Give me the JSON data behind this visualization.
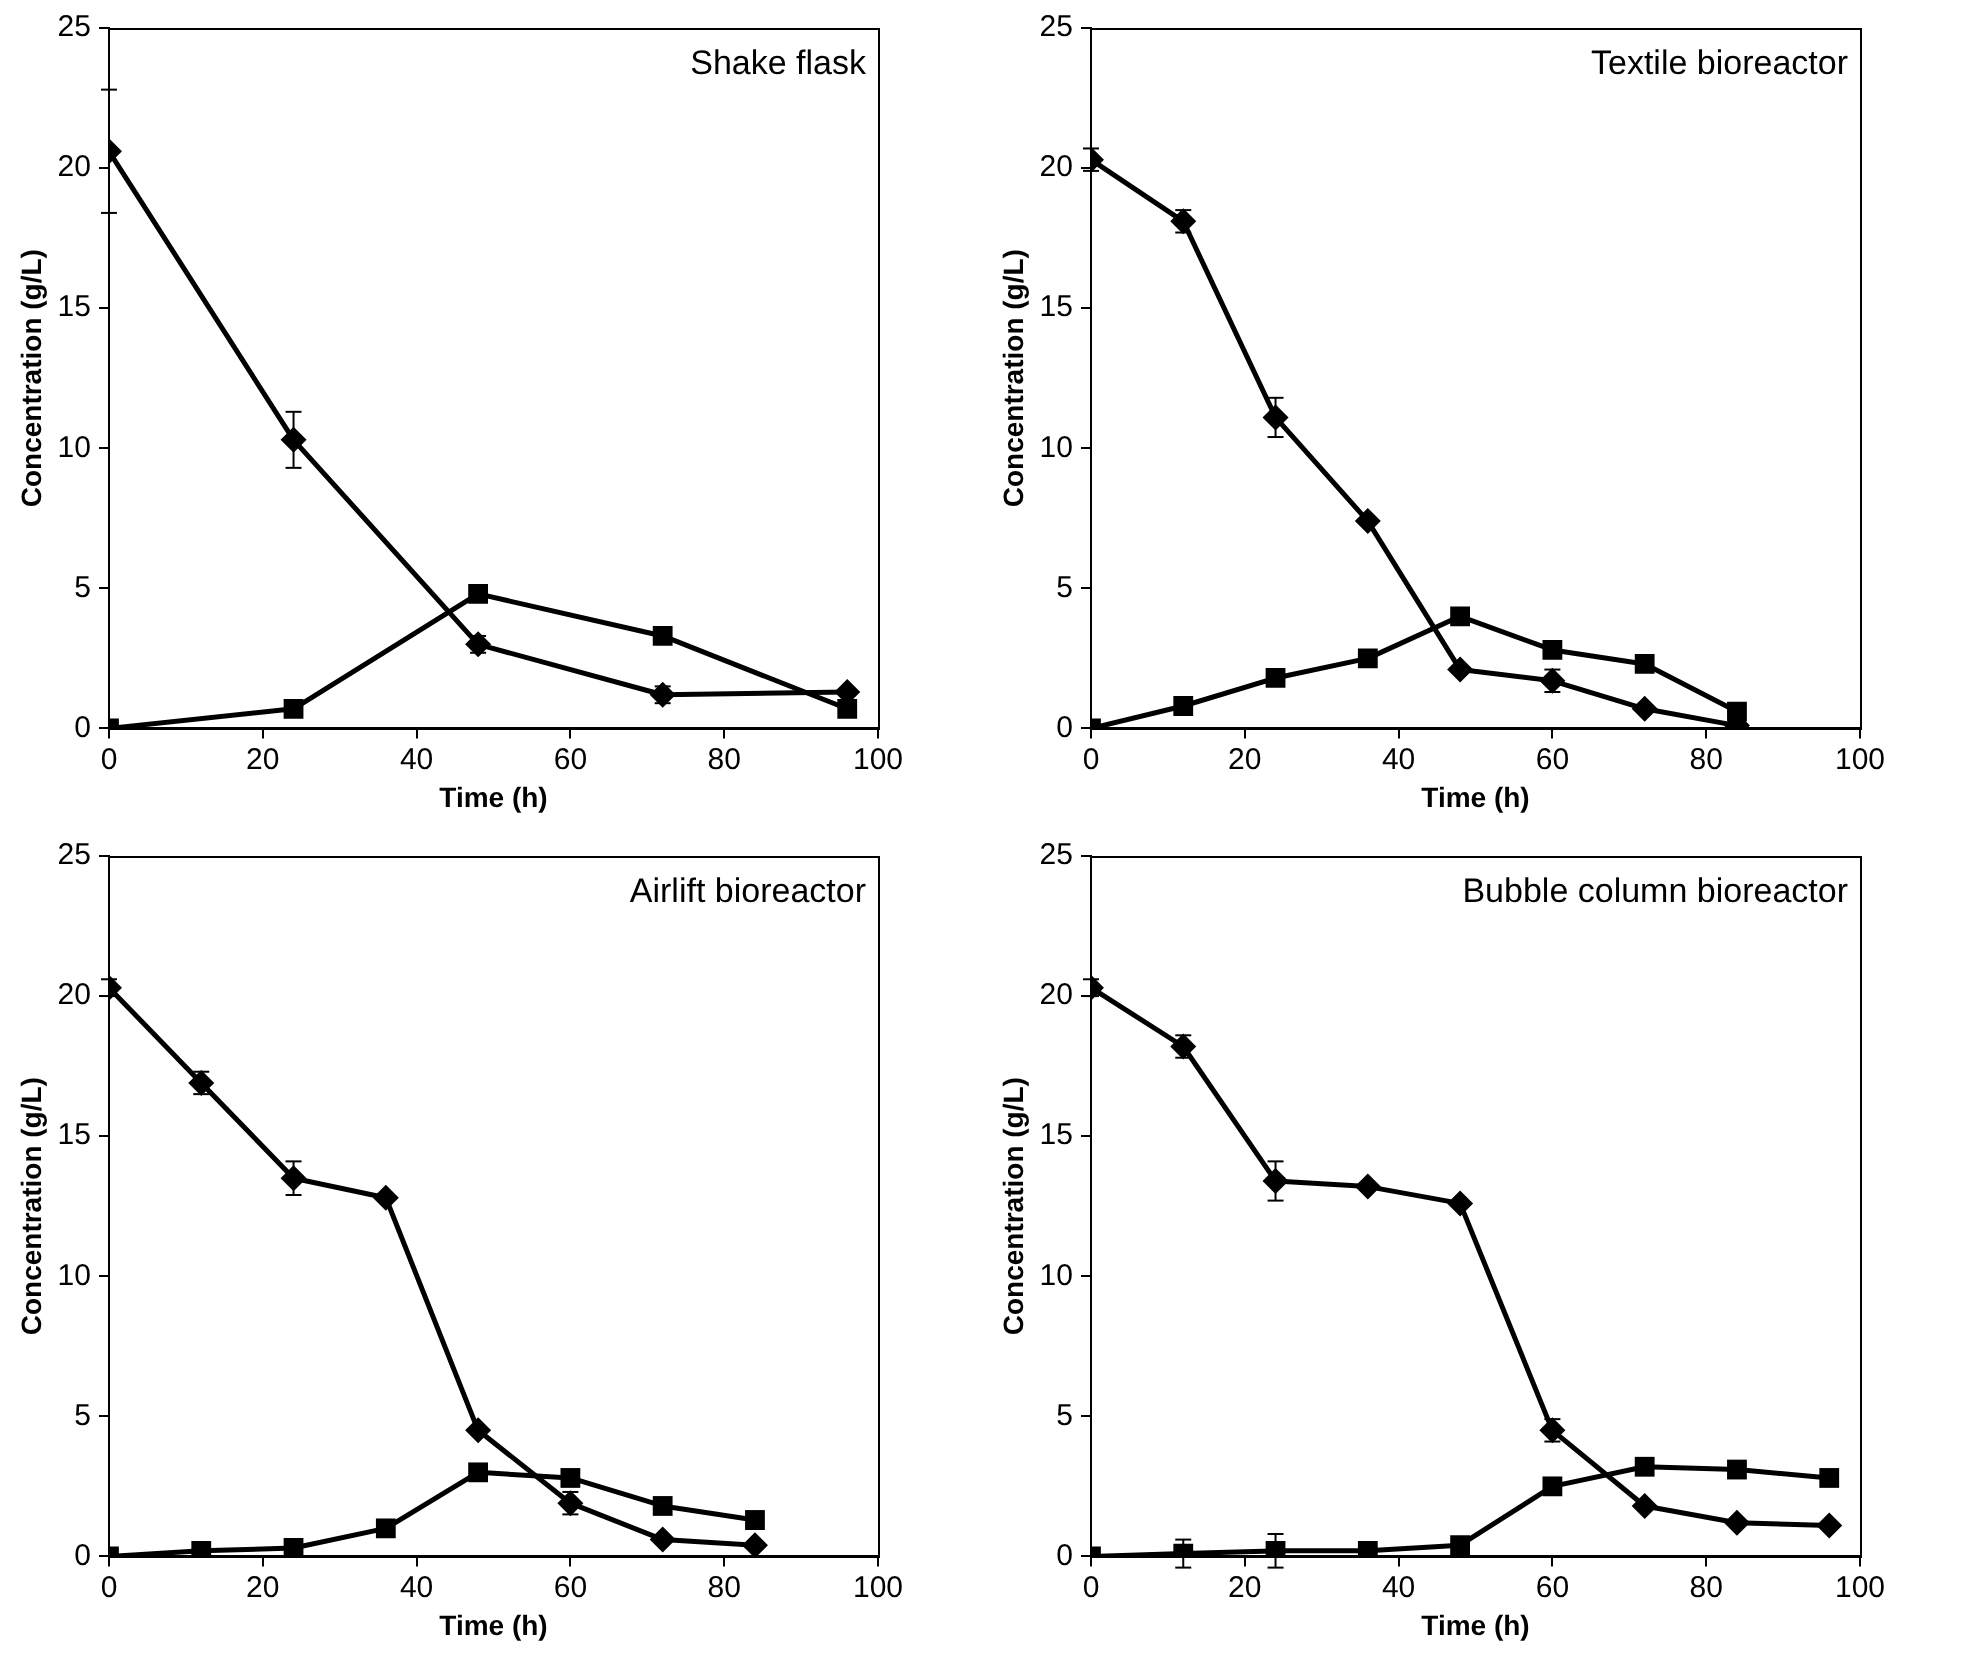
{
  "chart_data": [
    {
      "type": "line",
      "title": "Shake flask",
      "xlabel": "Time (h)",
      "ylabel": "Concentration (g/L)",
      "xlim": [
        0,
        100
      ],
      "xticks": [
        0,
        20,
        40,
        60,
        80,
        100
      ],
      "ylim": [
        0,
        25
      ],
      "yticks": [
        0,
        5,
        10,
        15,
        20,
        25
      ],
      "grid": false,
      "legend": false,
      "line_style": "solid",
      "x": [
        0,
        24,
        48,
        72,
        96
      ],
      "series": [
        {
          "color": "#000000",
          "marker": "diamond",
          "values": [
            20.6,
            10.3,
            3.0,
            1.2,
            1.3
          ],
          "errors": [
            2.2,
            1.0,
            0.3,
            0.3,
            null
          ]
        },
        {
          "color": "#000000",
          "marker": "square",
          "values": [
            0,
            0.7,
            4.8,
            3.3,
            0.7
          ]
        }
      ]
    },
    {
      "type": "line",
      "title": "Textile bioreactor",
      "xlabel": "Time (h)",
      "ylabel": "Concentration (g/L)",
      "xlim": [
        0,
        100
      ],
      "xticks": [
        0,
        20,
        40,
        60,
        80,
        100
      ],
      "ylim": [
        0,
        25
      ],
      "yticks": [
        0,
        5,
        10,
        15,
        20,
        25
      ],
      "grid": false,
      "legend": false,
      "line_style": "solid",
      "x": [
        0,
        12,
        24,
        36,
        48,
        60,
        72,
        84
      ],
      "series": [
        {
          "color": "#000000",
          "marker": "diamond",
          "values": [
            20.3,
            18.1,
            11.1,
            7.4,
            2.1,
            1.7,
            0.7,
            0.1
          ],
          "errors": [
            0.4,
            0.4,
            0.7,
            null,
            null,
            0.4,
            null,
            null
          ]
        },
        {
          "color": "#000000",
          "marker": "square",
          "values": [
            0,
            0.8,
            1.8,
            2.5,
            4.0,
            2.8,
            2.3,
            0.6
          ]
        }
      ]
    },
    {
      "type": "line",
      "title": "Airlift bioreactor",
      "xlabel": "Time (h)",
      "ylabel": "Concentration (g/L)",
      "xlim": [
        0,
        100
      ],
      "xticks": [
        0,
        20,
        40,
        60,
        80,
        100
      ],
      "ylim": [
        0,
        25
      ],
      "yticks": [
        0,
        5,
        10,
        15,
        20,
        25
      ],
      "grid": false,
      "legend": false,
      "line_style": "solid",
      "x": [
        0,
        12,
        24,
        36,
        48,
        60,
        72,
        84
      ],
      "series": [
        {
          "color": "#000000",
          "marker": "diamond",
          "values": [
            20.3,
            16.9,
            13.5,
            12.8,
            4.5,
            1.9,
            0.6,
            0.4
          ],
          "errors": [
            0.3,
            0.4,
            0.6,
            null,
            null,
            0.4,
            null,
            null
          ]
        },
        {
          "color": "#000000",
          "marker": "square",
          "values": [
            0,
            0.2,
            0.3,
            1.0,
            3.0,
            2.8,
            1.8,
            1.3
          ]
        }
      ]
    },
    {
      "type": "line",
      "title": "Bubble column bioreactor",
      "xlabel": "Time (h)",
      "ylabel": "Concentration (g/L)",
      "xlim": [
        0,
        100
      ],
      "xticks": [
        0,
        20,
        40,
        60,
        80,
        100
      ],
      "ylim": [
        0,
        25
      ],
      "yticks": [
        0,
        5,
        10,
        15,
        20,
        25
      ],
      "grid": false,
      "legend": false,
      "line_style": "solid",
      "x": [
        0,
        12,
        24,
        36,
        48,
        60,
        72,
        84,
        96
      ],
      "series": [
        {
          "color": "#000000",
          "marker": "diamond",
          "values": [
            20.3,
            18.2,
            13.4,
            13.2,
            12.6,
            4.5,
            1.8,
            1.2,
            1.1
          ],
          "errors": [
            0.3,
            0.4,
            0.7,
            null,
            null,
            0.4,
            null,
            null,
            null
          ]
        },
        {
          "color": "#000000",
          "marker": "square",
          "values": [
            0,
            0.1,
            0.2,
            0.2,
            0.4,
            2.5,
            3.2,
            3.1,
            2.8
          ],
          "errors": [
            null,
            0.5,
            0.6,
            null,
            null,
            null,
            null,
            null,
            null
          ]
        }
      ]
    }
  ]
}
